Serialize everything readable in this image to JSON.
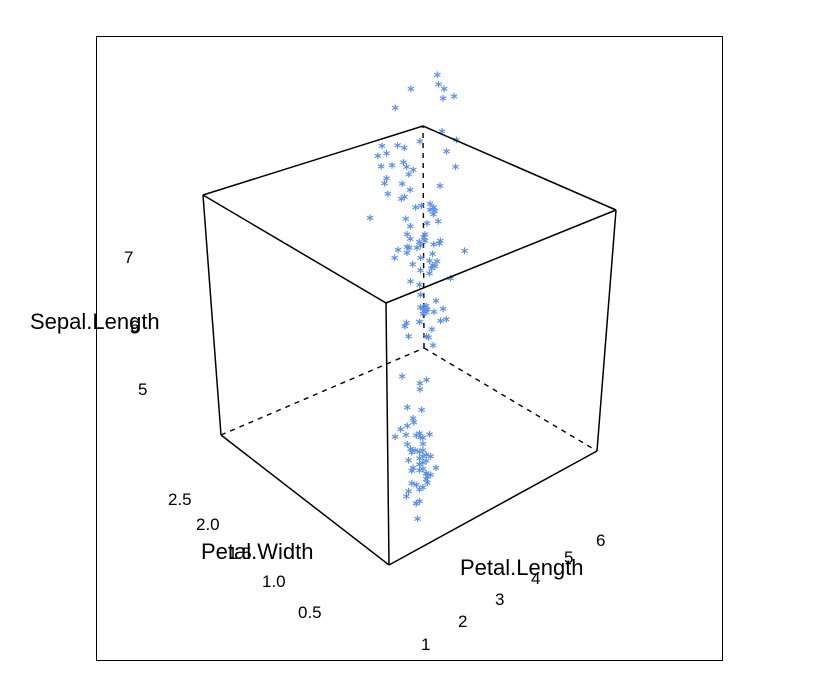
{
  "chart_data": {
    "type": "scatter3d",
    "point_symbol": "*",
    "point_color": "#5b8fe6",
    "axes": {
      "vertical": {
        "label": "Sepal.Length",
        "ticks": [
          "5",
          "6",
          "7"
        ]
      },
      "left_depth": {
        "label": "Petal.Width",
        "ticks": [
          "0.5",
          "1.0",
          "1.5",
          "2.0",
          "2.5"
        ]
      },
      "right_depth": {
        "label": "Petal.Length",
        "ticks": [
          "1",
          "2",
          "3",
          "4",
          "5",
          "6"
        ]
      }
    },
    "points": [
      {
        "petal_width": 0.2,
        "petal_length": 1.4,
        "sepal_length": 5.1
      },
      {
        "petal_width": 0.2,
        "petal_length": 1.4,
        "sepal_length": 4.9
      },
      {
        "petal_width": 0.2,
        "petal_length": 1.3,
        "sepal_length": 4.7
      },
      {
        "petal_width": 0.2,
        "petal_length": 1.5,
        "sepal_length": 4.6
      },
      {
        "petal_width": 0.2,
        "petal_length": 1.4,
        "sepal_length": 5.0
      },
      {
        "petal_width": 0.4,
        "petal_length": 1.7,
        "sepal_length": 5.4
      },
      {
        "petal_width": 0.3,
        "petal_length": 1.4,
        "sepal_length": 4.6
      },
      {
        "petal_width": 0.2,
        "petal_length": 1.5,
        "sepal_length": 5.0
      },
      {
        "petal_width": 0.2,
        "petal_length": 1.4,
        "sepal_length": 4.4
      },
      {
        "petal_width": 0.1,
        "petal_length": 1.5,
        "sepal_length": 4.9
      },
      {
        "petal_width": 0.2,
        "petal_length": 1.5,
        "sepal_length": 5.4
      },
      {
        "petal_width": 0.2,
        "petal_length": 1.6,
        "sepal_length": 4.8
      },
      {
        "petal_width": 0.1,
        "petal_length": 1.4,
        "sepal_length": 4.8
      },
      {
        "petal_width": 0.1,
        "petal_length": 1.1,
        "sepal_length": 4.3
      },
      {
        "petal_width": 0.2,
        "petal_length": 1.2,
        "sepal_length": 5.8
      },
      {
        "petal_width": 0.4,
        "petal_length": 1.5,
        "sepal_length": 5.7
      },
      {
        "petal_width": 0.4,
        "petal_length": 1.3,
        "sepal_length": 5.4
      },
      {
        "petal_width": 0.3,
        "petal_length": 1.4,
        "sepal_length": 5.1
      },
      {
        "petal_width": 0.3,
        "petal_length": 1.7,
        "sepal_length": 5.7
      },
      {
        "petal_width": 0.3,
        "petal_length": 1.5,
        "sepal_length": 5.1
      },
      {
        "petal_width": 0.2,
        "petal_length": 1.7,
        "sepal_length": 5.4
      },
      {
        "petal_width": 0.4,
        "petal_length": 1.5,
        "sepal_length": 5.1
      },
      {
        "petal_width": 0.2,
        "petal_length": 1.0,
        "sepal_length": 4.6
      },
      {
        "petal_width": 0.5,
        "petal_length": 1.7,
        "sepal_length": 5.1
      },
      {
        "petal_width": 0.2,
        "petal_length": 1.9,
        "sepal_length": 4.8
      },
      {
        "petal_width": 0.2,
        "petal_length": 1.6,
        "sepal_length": 5.0
      },
      {
        "petal_width": 0.4,
        "petal_length": 1.6,
        "sepal_length": 5.0
      },
      {
        "petal_width": 0.2,
        "petal_length": 1.5,
        "sepal_length": 5.2
      },
      {
        "petal_width": 0.2,
        "petal_length": 1.4,
        "sepal_length": 5.2
      },
      {
        "petal_width": 0.2,
        "petal_length": 1.6,
        "sepal_length": 4.7
      },
      {
        "petal_width": 0.2,
        "petal_length": 1.6,
        "sepal_length": 4.8
      },
      {
        "petal_width": 0.4,
        "petal_length": 1.5,
        "sepal_length": 5.4
      },
      {
        "petal_width": 0.1,
        "petal_length": 1.5,
        "sepal_length": 5.2
      },
      {
        "petal_width": 0.2,
        "petal_length": 1.4,
        "sepal_length": 5.5
      },
      {
        "petal_width": 0.2,
        "petal_length": 1.5,
        "sepal_length": 4.9
      },
      {
        "petal_width": 0.2,
        "petal_length": 1.2,
        "sepal_length": 5.0
      },
      {
        "petal_width": 0.2,
        "petal_length": 1.3,
        "sepal_length": 5.5
      },
      {
        "petal_width": 0.1,
        "petal_length": 1.4,
        "sepal_length": 4.9
      },
      {
        "petal_width": 0.2,
        "petal_length": 1.3,
        "sepal_length": 4.4
      },
      {
        "petal_width": 0.2,
        "petal_length": 1.5,
        "sepal_length": 5.1
      },
      {
        "petal_width": 0.3,
        "petal_length": 1.3,
        "sepal_length": 5.0
      },
      {
        "petal_width": 0.3,
        "petal_length": 1.3,
        "sepal_length": 4.5
      },
      {
        "petal_width": 0.2,
        "petal_length": 1.3,
        "sepal_length": 4.4
      },
      {
        "petal_width": 0.6,
        "petal_length": 1.6,
        "sepal_length": 5.0
      },
      {
        "petal_width": 0.4,
        "petal_length": 1.9,
        "sepal_length": 5.1
      },
      {
        "petal_width": 0.3,
        "petal_length": 1.4,
        "sepal_length": 4.8
      },
      {
        "petal_width": 0.2,
        "petal_length": 1.6,
        "sepal_length": 5.1
      },
      {
        "petal_width": 0.2,
        "petal_length": 1.4,
        "sepal_length": 4.6
      },
      {
        "petal_width": 0.2,
        "petal_length": 1.5,
        "sepal_length": 5.3
      },
      {
        "petal_width": 0.2,
        "petal_length": 1.4,
        "sepal_length": 5.0
      },
      {
        "petal_width": 1.4,
        "petal_length": 4.7,
        "sepal_length": 7.0
      },
      {
        "petal_width": 1.5,
        "petal_length": 4.5,
        "sepal_length": 6.4
      },
      {
        "petal_width": 1.5,
        "petal_length": 4.9,
        "sepal_length": 6.9
      },
      {
        "petal_width": 1.3,
        "petal_length": 4.0,
        "sepal_length": 5.5
      },
      {
        "petal_width": 1.5,
        "petal_length": 4.6,
        "sepal_length": 6.5
      },
      {
        "petal_width": 1.3,
        "petal_length": 4.5,
        "sepal_length": 5.7
      },
      {
        "petal_width": 1.6,
        "petal_length": 4.7,
        "sepal_length": 6.3
      },
      {
        "petal_width": 1.0,
        "petal_length": 3.3,
        "sepal_length": 4.9
      },
      {
        "petal_width": 1.3,
        "petal_length": 4.6,
        "sepal_length": 6.6
      },
      {
        "petal_width": 1.4,
        "petal_length": 3.9,
        "sepal_length": 5.2
      },
      {
        "petal_width": 1.0,
        "petal_length": 3.5,
        "sepal_length": 5.0
      },
      {
        "petal_width": 1.5,
        "petal_length": 4.2,
        "sepal_length": 5.9
      },
      {
        "petal_width": 1.0,
        "petal_length": 4.0,
        "sepal_length": 6.0
      },
      {
        "petal_width": 1.4,
        "petal_length": 4.7,
        "sepal_length": 6.1
      },
      {
        "petal_width": 1.3,
        "petal_length": 3.6,
        "sepal_length": 5.6
      },
      {
        "petal_width": 1.4,
        "petal_length": 4.4,
        "sepal_length": 6.7
      },
      {
        "petal_width": 1.5,
        "petal_length": 4.5,
        "sepal_length": 5.6
      },
      {
        "petal_width": 1.0,
        "petal_length": 4.1,
        "sepal_length": 5.8
      },
      {
        "petal_width": 1.5,
        "petal_length": 4.5,
        "sepal_length": 6.2
      },
      {
        "petal_width": 1.1,
        "petal_length": 3.9,
        "sepal_length": 5.6
      },
      {
        "petal_width": 1.8,
        "petal_length": 4.8,
        "sepal_length": 5.9
      },
      {
        "petal_width": 1.3,
        "petal_length": 4.0,
        "sepal_length": 6.1
      },
      {
        "petal_width": 1.5,
        "petal_length": 4.9,
        "sepal_length": 6.3
      },
      {
        "petal_width": 1.2,
        "petal_length": 4.7,
        "sepal_length": 6.1
      },
      {
        "petal_width": 1.3,
        "petal_length": 4.3,
        "sepal_length": 6.4
      },
      {
        "petal_width": 1.4,
        "petal_length": 4.4,
        "sepal_length": 6.6
      },
      {
        "petal_width": 1.4,
        "petal_length": 4.8,
        "sepal_length": 6.8
      },
      {
        "petal_width": 1.7,
        "petal_length": 5.0,
        "sepal_length": 6.7
      },
      {
        "petal_width": 1.5,
        "petal_length": 4.5,
        "sepal_length": 6.0
      },
      {
        "petal_width": 1.0,
        "petal_length": 3.5,
        "sepal_length": 5.7
      },
      {
        "petal_width": 1.1,
        "petal_length": 3.8,
        "sepal_length": 5.5
      },
      {
        "petal_width": 1.0,
        "petal_length": 3.7,
        "sepal_length": 5.5
      },
      {
        "petal_width": 1.2,
        "petal_length": 3.9,
        "sepal_length": 5.8
      },
      {
        "petal_width": 1.6,
        "petal_length": 5.1,
        "sepal_length": 6.0
      },
      {
        "petal_width": 1.5,
        "petal_length": 4.5,
        "sepal_length": 5.4
      },
      {
        "petal_width": 1.6,
        "petal_length": 4.5,
        "sepal_length": 6.0
      },
      {
        "petal_width": 1.5,
        "petal_length": 4.7,
        "sepal_length": 6.7
      },
      {
        "petal_width": 1.3,
        "petal_length": 4.4,
        "sepal_length": 6.3
      },
      {
        "petal_width": 1.3,
        "petal_length": 4.1,
        "sepal_length": 5.6
      },
      {
        "petal_width": 1.3,
        "petal_length": 4.0,
        "sepal_length": 5.5
      },
      {
        "petal_width": 1.2,
        "petal_length": 4.4,
        "sepal_length": 5.5
      },
      {
        "petal_width": 1.4,
        "petal_length": 4.6,
        "sepal_length": 6.1
      },
      {
        "petal_width": 1.2,
        "petal_length": 4.0,
        "sepal_length": 5.8
      },
      {
        "petal_width": 1.0,
        "petal_length": 3.3,
        "sepal_length": 5.0
      },
      {
        "petal_width": 1.3,
        "petal_length": 4.2,
        "sepal_length": 5.6
      },
      {
        "petal_width": 1.2,
        "petal_length": 4.2,
        "sepal_length": 5.7
      },
      {
        "petal_width": 1.3,
        "petal_length": 4.2,
        "sepal_length": 5.7
      },
      {
        "petal_width": 1.3,
        "petal_length": 4.3,
        "sepal_length": 6.2
      },
      {
        "petal_width": 1.1,
        "petal_length": 3.0,
        "sepal_length": 5.1
      },
      {
        "petal_width": 1.3,
        "petal_length": 4.1,
        "sepal_length": 5.7
      },
      {
        "petal_width": 2.5,
        "petal_length": 6.0,
        "sepal_length": 6.3
      },
      {
        "petal_width": 1.9,
        "petal_length": 5.1,
        "sepal_length": 5.8
      },
      {
        "petal_width": 2.1,
        "petal_length": 5.9,
        "sepal_length": 7.1
      },
      {
        "petal_width": 1.8,
        "petal_length": 5.6,
        "sepal_length": 6.3
      },
      {
        "petal_width": 2.2,
        "petal_length": 5.8,
        "sepal_length": 6.5
      },
      {
        "petal_width": 2.1,
        "petal_length": 6.6,
        "sepal_length": 7.6
      },
      {
        "petal_width": 1.7,
        "petal_length": 4.5,
        "sepal_length": 4.9
      },
      {
        "petal_width": 1.8,
        "petal_length": 6.3,
        "sepal_length": 7.3
      },
      {
        "petal_width": 1.8,
        "petal_length": 5.8,
        "sepal_length": 6.7
      },
      {
        "petal_width": 2.5,
        "petal_length": 6.1,
        "sepal_length": 7.2
      },
      {
        "petal_width": 2.0,
        "petal_length": 5.1,
        "sepal_length": 6.5
      },
      {
        "petal_width": 1.9,
        "petal_length": 5.3,
        "sepal_length": 6.4
      },
      {
        "petal_width": 2.1,
        "petal_length": 5.5,
        "sepal_length": 6.8
      },
      {
        "petal_width": 2.0,
        "petal_length": 5.0,
        "sepal_length": 5.7
      },
      {
        "petal_width": 2.4,
        "petal_length": 5.1,
        "sepal_length": 5.8
      },
      {
        "petal_width": 2.3,
        "petal_length": 5.3,
        "sepal_length": 6.4
      },
      {
        "petal_width": 1.8,
        "petal_length": 5.5,
        "sepal_length": 6.5
      },
      {
        "petal_width": 2.2,
        "petal_length": 6.7,
        "sepal_length": 7.7
      },
      {
        "petal_width": 2.3,
        "petal_length": 6.9,
        "sepal_length": 7.7
      },
      {
        "petal_width": 1.5,
        "petal_length": 5.0,
        "sepal_length": 6.0
      },
      {
        "petal_width": 2.3,
        "petal_length": 5.7,
        "sepal_length": 6.9
      },
      {
        "petal_width": 2.0,
        "petal_length": 4.9,
        "sepal_length": 5.6
      },
      {
        "petal_width": 2.0,
        "petal_length": 6.7,
        "sepal_length": 7.7
      },
      {
        "petal_width": 1.8,
        "petal_length": 4.9,
        "sepal_length": 6.3
      },
      {
        "petal_width": 2.1,
        "petal_length": 5.7,
        "sepal_length": 6.7
      },
      {
        "petal_width": 1.8,
        "petal_length": 6.0,
        "sepal_length": 7.2
      },
      {
        "petal_width": 1.8,
        "petal_length": 4.8,
        "sepal_length": 6.2
      },
      {
        "petal_width": 1.8,
        "petal_length": 4.9,
        "sepal_length": 6.1
      },
      {
        "petal_width": 2.1,
        "petal_length": 5.6,
        "sepal_length": 6.4
      },
      {
        "petal_width": 1.6,
        "petal_length": 5.8,
        "sepal_length": 7.2
      },
      {
        "petal_width": 1.9,
        "petal_length": 6.1,
        "sepal_length": 7.4
      },
      {
        "petal_width": 2.0,
        "petal_length": 6.4,
        "sepal_length": 7.9
      },
      {
        "petal_width": 2.2,
        "petal_length": 5.6,
        "sepal_length": 6.4
      },
      {
        "petal_width": 1.5,
        "petal_length": 5.1,
        "sepal_length": 6.3
      },
      {
        "petal_width": 1.4,
        "petal_length": 5.6,
        "sepal_length": 6.1
      },
      {
        "petal_width": 2.3,
        "petal_length": 6.1,
        "sepal_length": 7.7
      },
      {
        "petal_width": 2.4,
        "petal_length": 5.6,
        "sepal_length": 6.3
      },
      {
        "petal_width": 1.8,
        "petal_length": 5.5,
        "sepal_length": 6.4
      },
      {
        "petal_width": 1.8,
        "petal_length": 4.8,
        "sepal_length": 6.0
      },
      {
        "petal_width": 2.1,
        "petal_length": 5.4,
        "sepal_length": 6.9
      },
      {
        "petal_width": 2.4,
        "petal_length": 5.6,
        "sepal_length": 6.7
      },
      {
        "petal_width": 2.3,
        "petal_length": 5.1,
        "sepal_length": 6.9
      },
      {
        "petal_width": 1.9,
        "petal_length": 5.1,
        "sepal_length": 5.8
      },
      {
        "petal_width": 2.3,
        "petal_length": 5.9,
        "sepal_length": 6.8
      },
      {
        "petal_width": 2.5,
        "petal_length": 5.7,
        "sepal_length": 6.7
      },
      {
        "petal_width": 2.3,
        "petal_length": 5.2,
        "sepal_length": 6.7
      },
      {
        "petal_width": 1.9,
        "petal_length": 5.0,
        "sepal_length": 6.3
      },
      {
        "petal_width": 2.0,
        "petal_length": 5.2,
        "sepal_length": 6.5
      },
      {
        "petal_width": 2.3,
        "petal_length": 5.4,
        "sepal_length": 6.2
      },
      {
        "petal_width": 1.8,
        "petal_length": 5.1,
        "sepal_length": 5.9
      }
    ]
  }
}
